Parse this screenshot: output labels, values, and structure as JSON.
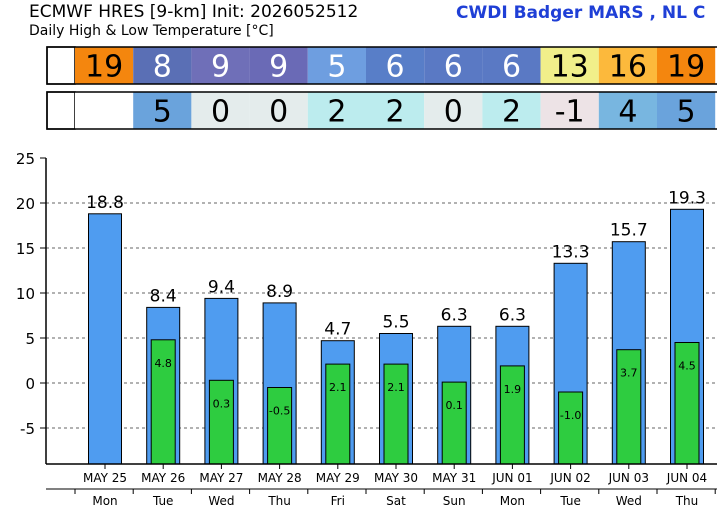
{
  "header": {
    "title": "ECMWF HRES [9-km] Init: 2026052512",
    "subtitle": "Daily High & Low Temperature [°C]",
    "brand": "CWDI Badger  MARS , NL C"
  },
  "strips": {
    "high": {
      "values": [
        "19",
        "8",
        "9",
        "9",
        "5",
        "6",
        "6",
        "6",
        "13",
        "16",
        "19"
      ],
      "colors": [
        "#f4860e",
        "#5a6fb5",
        "#6f6fb8",
        "#6a6ab6",
        "#6e9ee0",
        "#587ec8",
        "#5a79c4",
        "#5a79c4",
        "#f1ef8a",
        "#fcb93c",
        "#f4860e"
      ]
    },
    "low": {
      "values": [
        "",
        "5",
        "0",
        "0",
        "2",
        "2",
        "0",
        "2",
        "-1",
        "4",
        "5"
      ],
      "colors": [
        "#ffffff",
        "#6aa3dc",
        "#e4ecec",
        "#e4ecec",
        "#bcecee",
        "#bcecee",
        "#e4ecec",
        "#bcecee",
        "#ede3e6",
        "#78b6e0",
        "#6aa3dc"
      ]
    }
  },
  "chart_data": {
    "type": "bar",
    "categories": [
      "MAY 25",
      "MAY 26",
      "MAY 27",
      "MAY 28",
      "MAY 29",
      "MAY 30",
      "MAY 31",
      "JUN 01",
      "JUN 02",
      "JUN 03",
      "JUN 04"
    ],
    "weekdays": [
      "Mon",
      "Tue",
      "Wed",
      "Thu",
      "Fri",
      "Sat",
      "Sun",
      "Mon",
      "Tue",
      "Wed",
      "Thu"
    ],
    "series": [
      {
        "values": [
          18.8,
          8.4,
          9.4,
          8.9,
          4.7,
          5.5,
          6.3,
          6.3,
          13.3,
          15.7,
          19.3
        ],
        "color": "#4f9cf0"
      },
      {
        "values": [
          null,
          4.8,
          0.3,
          -0.5,
          2.1,
          2.1,
          0.1,
          1.9,
          -1.0,
          3.7,
          4.5
        ],
        "color": "#2ecc40"
      }
    ],
    "high_labels": [
      "18.8",
      "8.4",
      "9.4",
      "8.9",
      "4.7",
      "5.5",
      "6.3",
      "6.3",
      "13.3",
      "15.7",
      "19.3"
    ],
    "low_labels": [
      "",
      "4.8",
      "0.3",
      "-0.5",
      "2.1",
      "2.1",
      "0.1",
      "1.9",
      "-1.0",
      "3.7",
      "4.5"
    ],
    "y_ticks": [
      "25",
      "20",
      "15",
      "10",
      "5",
      "0",
      "-5"
    ],
    "ylim": [
      -9,
      25
    ],
    "grid": "horizontal dashed",
    "legend": "none"
  }
}
